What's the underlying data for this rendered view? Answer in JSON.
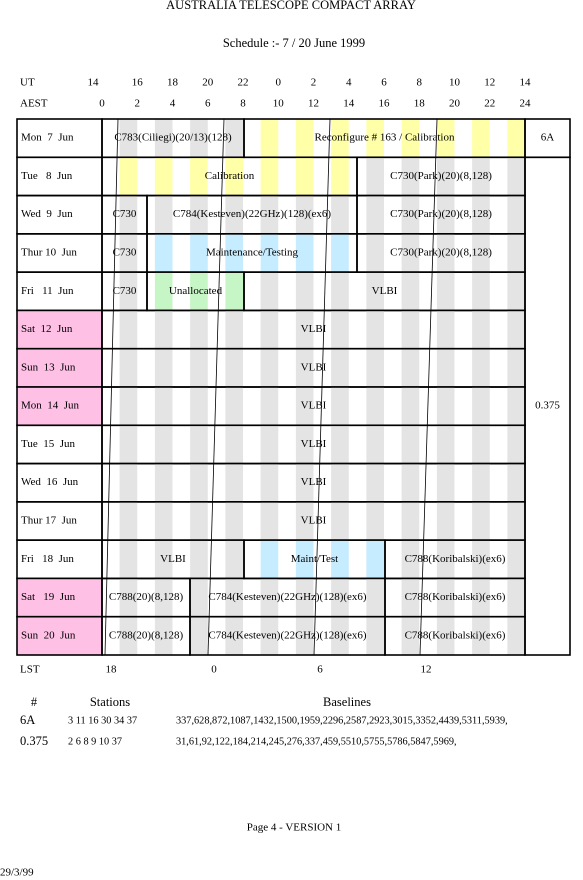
{
  "header": {
    "title": "AUSTRALIA TELESCOPE COMPACT ARRAY",
    "subtitle": "Schedule :- 7 / 20 June 1999"
  },
  "time_axis": {
    "ut_label": "UT",
    "ut": [
      "14",
      "16",
      "18",
      "20",
      "22",
      "0",
      "2",
      "4",
      "6",
      "8",
      "10",
      "12",
      "14"
    ],
    "aest_label": "AEST",
    "aest": [
      "0",
      "2",
      "4",
      "6",
      "8",
      "10",
      "12",
      "14",
      "16",
      "18",
      "20",
      "22",
      "24"
    ]
  },
  "schedule": {
    "rows": [
      {
        "day": "Mon  7  Jun",
        "blocks": [
          "C783(Ciliegi)(20/13)(128)",
          "Reconfigure # 163 / Calibration"
        ]
      },
      {
        "day": "Tue   8  Jun",
        "blocks": [
          "Calibration",
          "C730(Park)(20)(8,128)"
        ]
      },
      {
        "day": "Wed  9  Jun",
        "blocks": [
          "C730",
          "C784(Kesteven)(22GHz)(128)(ex6)",
          "C730(Park)(20)(8,128)"
        ]
      },
      {
        "day": "Thur 10  Jun",
        "blocks": [
          "C730",
          "Maintenance/Testing",
          "C730(Park)(20)(8,128)"
        ]
      },
      {
        "day": "Fri   11  Jun",
        "blocks": [
          "C730",
          "Unallocated",
          "VLBI"
        ]
      },
      {
        "day": "Sat  12  Jun",
        "blocks": [
          "VLBI"
        ]
      },
      {
        "day": "Sun  13  Jun",
        "blocks": [
          "VLBI"
        ]
      },
      {
        "day": "Mon  14  Jun",
        "blocks": [
          "VLBI"
        ]
      },
      {
        "day": "Tue  15  Jun",
        "blocks": [
          "VLBI"
        ]
      },
      {
        "day": "Wed  16  Jun",
        "blocks": [
          "VLBI"
        ]
      },
      {
        "day": "Thur 17  Jun",
        "blocks": [
          "VLBI"
        ]
      },
      {
        "day": "Fri   18  Jun",
        "blocks": [
          "VLBI",
          "Maint/Test",
          "C788(Koribalski)(ex6)"
        ]
      },
      {
        "day": "Sat   19  Jun",
        "blocks": [
          "C788(20)(8,128)",
          "C784(Kesteven)(22GHz)(128)(ex6)",
          "C788(Koribalski)(ex6)"
        ]
      },
      {
        "day": "Sun  20  Jun",
        "blocks": [
          "C788(20)(8,128)",
          "C784(Kesteven)(22GHz)(128)(ex6)",
          "C788(Koribalski)(ex6)"
        ]
      }
    ],
    "configs": [
      "6A",
      "0.375"
    ]
  },
  "lst": {
    "label": "LST",
    "ticks": [
      "18",
      "0",
      "6",
      "12"
    ]
  },
  "arrays": {
    "headers": [
      "#",
      "Stations",
      "Baselines"
    ],
    "rows": [
      [
        "6A",
        "3 11 16 30 34 37",
        "337,628,872,1087,1432,1500,1959,2296,2587,2923,3015,3352,4439,5311,5939,"
      ],
      [
        "0.375",
        "2 6 8 9 10 37",
        "31,61,92,122,184,214,245,276,337,459,5510,5755,5786,5847,5969,"
      ]
    ]
  },
  "footer": {
    "page": "Page 4 - VERSION 1",
    "date": "29/3/99"
  }
}
